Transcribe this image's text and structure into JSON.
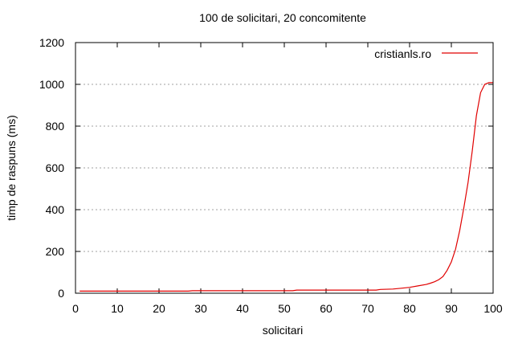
{
  "chart_data": {
    "type": "line",
    "title": "100 de solicitari, 20 concomitente",
    "xlabel": "solicitari",
    "ylabel": "timp de raspuns (ms)",
    "xlim": [
      0,
      100
    ],
    "ylim": [
      0,
      1200
    ],
    "xticks": [
      0,
      10,
      20,
      30,
      40,
      50,
      60,
      70,
      80,
      90,
      100
    ],
    "yticks": [
      0,
      200,
      400,
      600,
      800,
      1000,
      1200
    ],
    "grid": {
      "y": true,
      "x": false,
      "style": "dotted"
    },
    "legend_position": "top-right",
    "series": [
      {
        "name": "cristianls.ro",
        "color": "#e00000",
        "x": [
          1,
          10,
          20,
          27,
          28,
          40,
          52,
          53,
          60,
          72,
          73,
          76,
          78,
          80,
          82,
          84,
          85,
          86,
          87,
          88,
          89,
          90,
          91,
          92,
          93,
          94,
          95,
          96,
          97,
          98,
          99,
          100
        ],
        "values": [
          10,
          10,
          10,
          10,
          12,
          12,
          12,
          15,
          15,
          15,
          18,
          20,
          24,
          28,
          35,
          42,
          48,
          55,
          65,
          80,
          110,
          150,
          210,
          300,
          410,
          530,
          680,
          850,
          960,
          1000,
          1008,
          1008
        ]
      }
    ]
  }
}
